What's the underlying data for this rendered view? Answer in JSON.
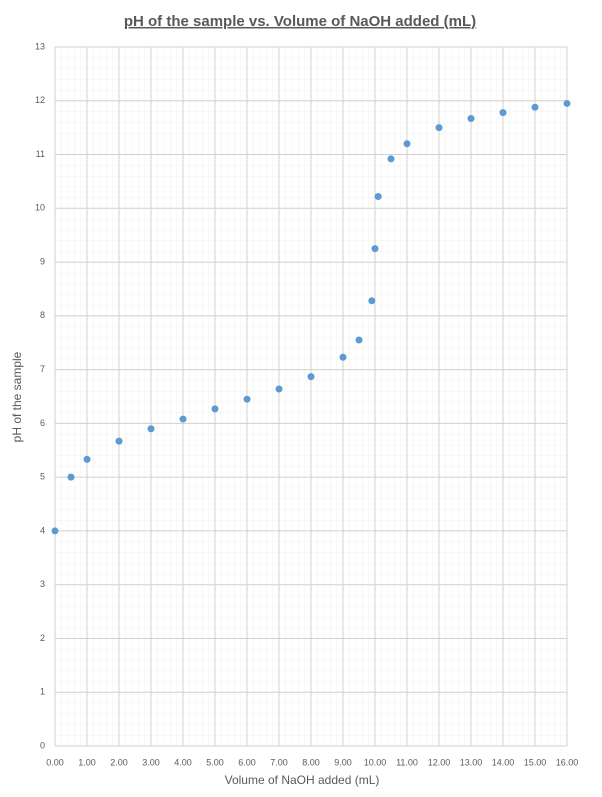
{
  "chart_data": {
    "type": "scatter",
    "title": "pH of the sample vs. Volume of NaOH added (mL)",
    "x_label": "Volume of NaOH added (mL)",
    "y_label": "pH of the sample",
    "series": [
      {
        "name": "pH",
        "color": "#5b9bd5",
        "x": [
          0,
          0.5,
          1,
          2,
          3,
          4,
          5,
          6,
          7,
          8,
          9,
          9.5,
          9.9,
          10,
          10.1,
          10.5,
          11,
          12,
          13,
          14,
          15,
          16
        ],
        "values": [
          4.0,
          5.0,
          5.33,
          5.67,
          5.9,
          6.08,
          6.27,
          6.45,
          6.64,
          6.87,
          7.23,
          7.55,
          8.28,
          9.25,
          10.22,
          10.92,
          11.2,
          11.5,
          11.67,
          11.78,
          11.88,
          11.95
        ]
      }
    ],
    "xlim": [
      0,
      16
    ],
    "xticks": [
      {
        "value": 0,
        "label": "0.00"
      },
      {
        "value": 1,
        "label": "1.00"
      },
      {
        "value": 2,
        "label": "2.00"
      },
      {
        "value": 3,
        "label": "3.00"
      },
      {
        "value": 4,
        "label": "4.00"
      },
      {
        "value": 5,
        "label": "5.00"
      },
      {
        "value": 6,
        "label": "6.00"
      },
      {
        "value": 7,
        "label": "7.00"
      },
      {
        "value": 8,
        "label": "8.00"
      },
      {
        "value": 9,
        "label": "9.00"
      },
      {
        "value": 10,
        "label": "10.00"
      },
      {
        "value": 11,
        "label": "11.00"
      },
      {
        "value": 12,
        "label": "12.00"
      },
      {
        "value": 13,
        "label": "13.00"
      },
      {
        "value": 14,
        "label": "14.00"
      },
      {
        "value": 15,
        "label": "15.00"
      },
      {
        "value": 16,
        "label": "16.00"
      }
    ],
    "ylim": [
      0,
      13
    ],
    "yticks": [
      0,
      1,
      2,
      3,
      4,
      5,
      6,
      7,
      8,
      9,
      10,
      11,
      12,
      13
    ],
    "grid": true
  }
}
